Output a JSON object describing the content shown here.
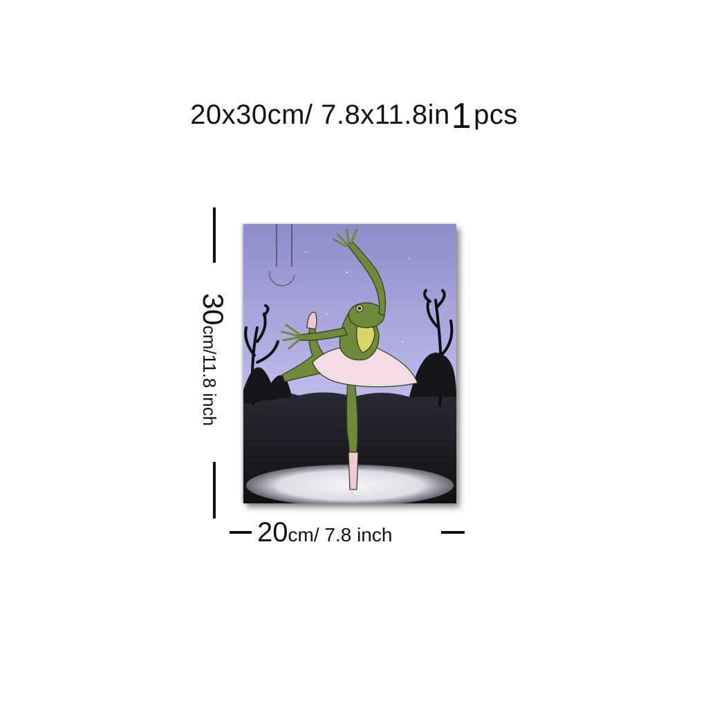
{
  "title": {
    "size_text": "20x30cm/ 7.8x11.8in",
    "quantity_number": "1",
    "quantity_unit": "pcs"
  },
  "height_dimension": {
    "number": "30",
    "unit": "cm",
    "rest": "/11.8 inch"
  },
  "width_dimension": {
    "number": "20",
    "unit": "cm",
    "rest": "/ 7.8 inch"
  },
  "colors": {
    "sky_top": "#9d9bd6",
    "sky_bottom": "#c9c6ef",
    "frog_body": "#6e8a3a",
    "frog_belly": "#d8d86a",
    "tutu": "#f3d9e3",
    "ground": "#15151b",
    "spotlight": "#e9e9ef"
  }
}
